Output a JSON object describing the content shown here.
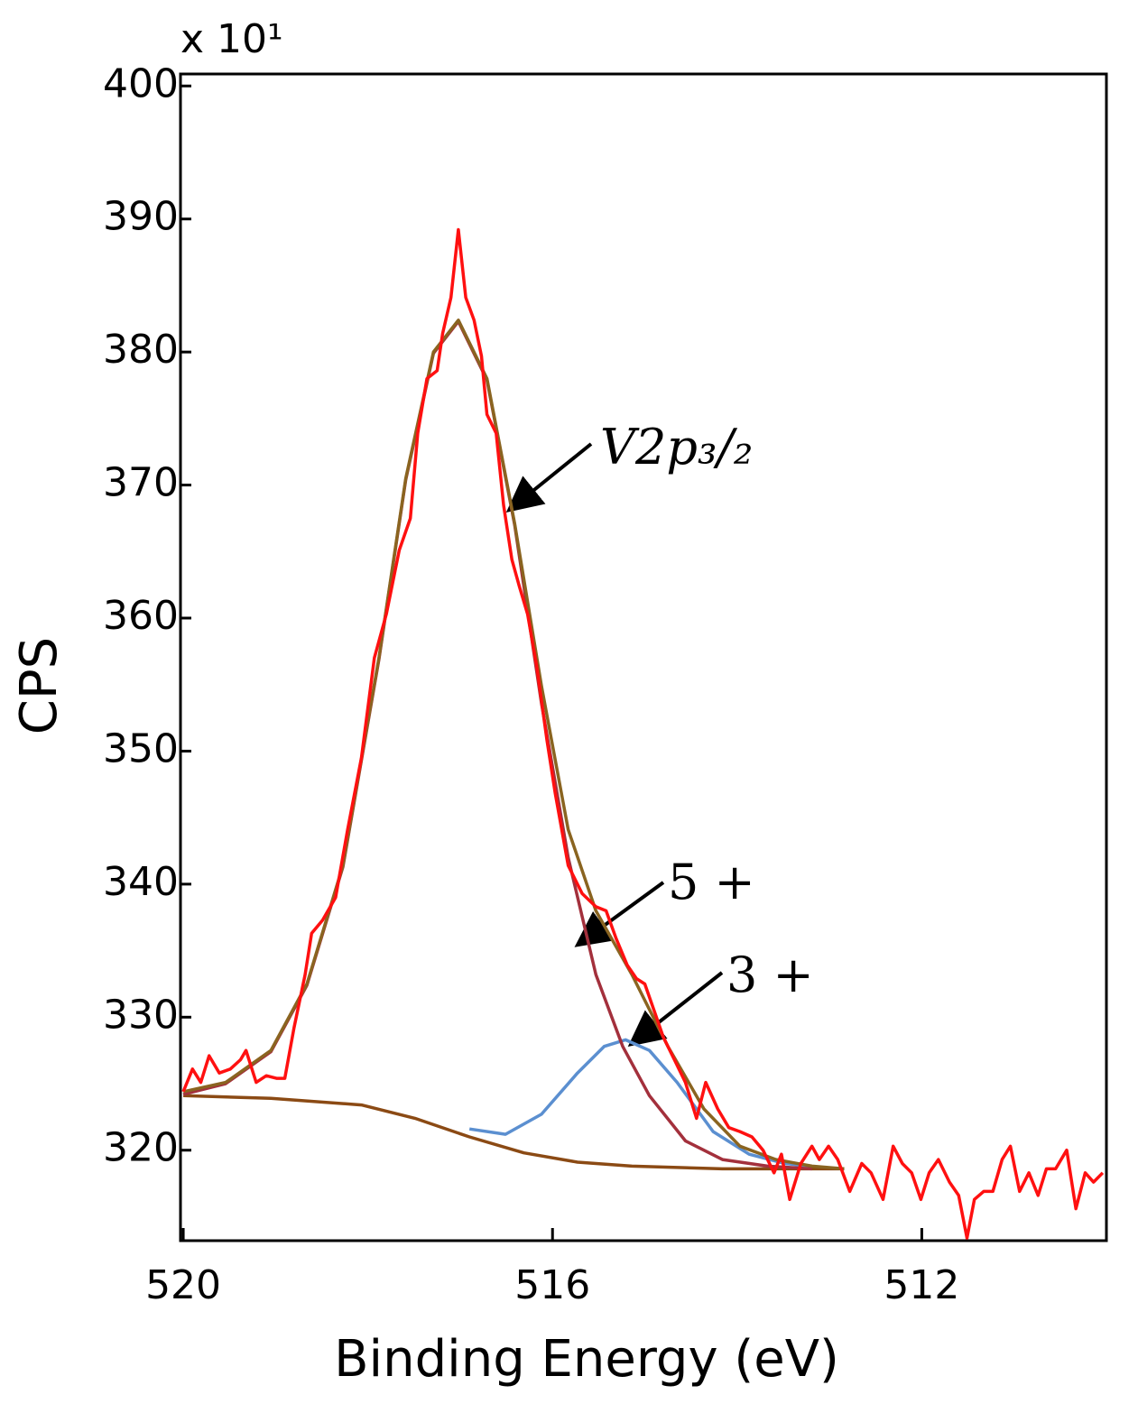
{
  "chart_data": {
    "type": "line",
    "y_multiplier": "x 10¹",
    "y_label": "CPS",
    "x_label": "Binding Energy (eV)",
    "annotations": [
      "V2p₃/₂",
      "5 +",
      "3 +"
    ],
    "xlim": [
      520.03,
      510
    ],
    "ylim": [
      313.2,
      400.9
    ],
    "xticks": [
      520,
      516,
      512
    ],
    "yticks": [
      320,
      330,
      340,
      350,
      360,
      370,
      380,
      390,
      400
    ],
    "grid": false,
    "series": [
      {
        "color": "#ff1010",
        "x": [
          520.0,
          519.9,
          519.81,
          519.72,
          519.61,
          519.49,
          519.38,
          519.32,
          519.21,
          519.1,
          518.99,
          518.9,
          518.8,
          518.68,
          518.61,
          518.49,
          518.35,
          518.22,
          518.07,
          517.93,
          517.8,
          517.66,
          517.54,
          517.46,
          517.36,
          517.25,
          517.19,
          517.1,
          517.02,
          516.94,
          516.85,
          516.77,
          516.71,
          516.61,
          516.53,
          516.44,
          516.36,
          516.27,
          516.17,
          516.06,
          515.97,
          515.83,
          515.68,
          515.53,
          515.42,
          515.31,
          515.19,
          515.09,
          515.0,
          514.9,
          514.8,
          514.68,
          514.56,
          514.44,
          514.34,
          514.21,
          514.09,
          513.97,
          513.84,
          513.72,
          513.6,
          513.52,
          513.43,
          513.31,
          513.19,
          513.11,
          513.01,
          512.91,
          512.78,
          512.65,
          512.55,
          512.42,
          512.31,
          512.21,
          512.11,
          512.01,
          511.92,
          511.82,
          511.7,
          511.6,
          511.51,
          511.43,
          511.33,
          511.23,
          511.13,
          511.04,
          510.94,
          510.84,
          510.74,
          510.65,
          510.55,
          510.43,
          510.33,
          510.23,
          510.14,
          510.04
        ],
        "values": [
          324.4,
          326.1,
          325.1,
          327.1,
          325.8,
          326.1,
          326.8,
          327.5,
          325.1,
          325.6,
          325.4,
          325.4,
          329.2,
          333.2,
          336.3,
          337.3,
          339.0,
          344.1,
          349.5,
          357.0,
          360.3,
          365.1,
          367.5,
          373.9,
          378.0,
          378.6,
          381.4,
          384.1,
          389.2,
          384.1,
          382.4,
          379.7,
          375.3,
          373.9,
          368.5,
          364.4,
          362.4,
          360.3,
          356.3,
          350.8,
          346.8,
          341.4,
          339.3,
          338.3,
          338.0,
          335.9,
          333.9,
          332.9,
          332.5,
          330.5,
          328.5,
          326.8,
          325.1,
          322.4,
          325.1,
          323.1,
          321.7,
          321.4,
          321.0,
          320.0,
          318.3,
          319.7,
          316.3,
          319.0,
          320.3,
          319.3,
          320.3,
          319.3,
          316.9,
          319.0,
          318.3,
          316.3,
          320.3,
          319.0,
          318.3,
          316.3,
          318.3,
          319.3,
          317.6,
          316.6,
          313.4,
          316.3,
          316.9,
          316.9,
          319.3,
          320.3,
          316.9,
          318.3,
          316.6,
          318.6,
          318.6,
          320.0,
          315.6,
          318.3,
          317.6,
          318.3
        ]
      },
      {
        "color": "#8a6420",
        "x": [
          520.0,
          519.54,
          519.05,
          518.66,
          518.27,
          517.88,
          517.59,
          517.29,
          517.02,
          516.71,
          516.41,
          516.12,
          515.83,
          515.53,
          515.14,
          514.75,
          514.36,
          513.97,
          513.58,
          513.19,
          512.84
        ],
        "values": [
          324.4,
          325.1,
          327.5,
          332.5,
          341.4,
          357.0,
          370.5,
          380.0,
          382.4,
          378.0,
          367.1,
          354.9,
          344.1,
          338.0,
          333.2,
          327.8,
          323.1,
          320.3,
          319.3,
          318.8,
          318.6
        ]
      },
      {
        "color": "#a3303c",
        "x": [
          520.0,
          519.54,
          519.05,
          518.66,
          518.27,
          517.88,
          517.59,
          517.29,
          517.02,
          516.71,
          516.41,
          516.12,
          515.83,
          515.53,
          515.24,
          514.95,
          514.56,
          514.16,
          513.67,
          513.19
        ],
        "values": [
          324.2,
          325.0,
          327.4,
          332.4,
          341.3,
          356.9,
          370.4,
          379.9,
          382.3,
          377.9,
          367.0,
          353.6,
          342.0,
          333.2,
          327.8,
          324.1,
          320.7,
          319.3,
          318.8,
          318.6
        ]
      },
      {
        "color": "#5b8fd0",
        "x": [
          516.9,
          516.51,
          516.12,
          515.73,
          515.44,
          515.21,
          514.95,
          514.65,
          514.26,
          513.87,
          513.48,
          513.19
        ],
        "values": [
          321.6,
          321.2,
          322.7,
          325.8,
          327.8,
          328.3,
          327.5,
          325.1,
          321.4,
          319.7,
          319.0,
          318.8
        ]
      },
      {
        "color": "#8b4a14",
        "x": [
          520.0,
          519.05,
          518.07,
          517.49,
          516.9,
          516.31,
          515.73,
          515.14,
          514.16,
          512.84
        ],
        "values": [
          324.1,
          323.9,
          323.4,
          322.4,
          321.0,
          319.8,
          319.1,
          318.8,
          318.6,
          318.6
        ]
      }
    ]
  }
}
